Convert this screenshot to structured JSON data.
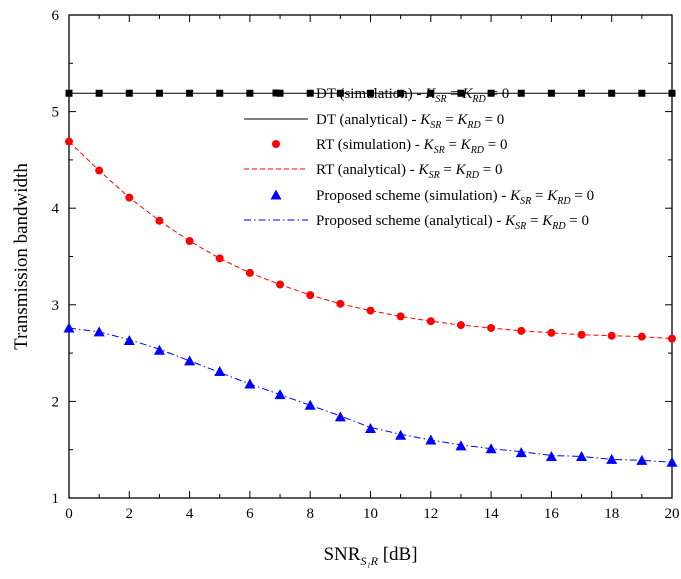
{
  "chart_data": {
    "type": "line",
    "xlabel": "SNR",
    "xlabel_sub": "S₁R",
    "xlabel_unit": "[dB]",
    "ylabel": "Transmission bandwidth",
    "xlim": [
      0,
      20
    ],
    "ylim": [
      1,
      6
    ],
    "xticks": [
      0,
      2,
      4,
      6,
      8,
      10,
      12,
      14,
      16,
      18,
      20
    ],
    "yticks": [
      1,
      2,
      3,
      4,
      5,
      6
    ],
    "grid": false,
    "legend_position": "center-right",
    "x": [
      0,
      1,
      2,
      3,
      4,
      5,
      6,
      7,
      8,
      9,
      10,
      11,
      12,
      13,
      14,
      15,
      16,
      17,
      18,
      19,
      20
    ],
    "series": [
      {
        "legend_text": "DT (simulation) - ",
        "marker": "square",
        "line": "none",
        "color": "#000000",
        "values": [
          5.19,
          5.19,
          5.19,
          5.19,
          5.19,
          5.19,
          5.19,
          5.19,
          5.19,
          5.19,
          5.19,
          5.19,
          5.19,
          5.19,
          5.19,
          5.19,
          5.19,
          5.19,
          5.19,
          5.19,
          5.19
        ]
      },
      {
        "legend_text": "DT (analytical) - ",
        "marker": "none",
        "line": "solid",
        "color": "#000000",
        "values": [
          5.19,
          5.19,
          5.19,
          5.19,
          5.19,
          5.19,
          5.19,
          5.19,
          5.19,
          5.19,
          5.19,
          5.19,
          5.19,
          5.19,
          5.19,
          5.19,
          5.19,
          5.19,
          5.19,
          5.19,
          5.19
        ]
      },
      {
        "legend_text": "RT (simulation) - ",
        "marker": "circle",
        "line": "none",
        "color": "#ff0000",
        "values": [
          4.69,
          4.39,
          4.11,
          3.87,
          3.66,
          3.48,
          3.33,
          3.21,
          3.1,
          3.01,
          2.94,
          2.88,
          2.83,
          2.79,
          2.76,
          2.73,
          2.71,
          2.69,
          2.68,
          2.67,
          2.65
        ]
      },
      {
        "legend_text": "RT (analytical) - ",
        "marker": "none",
        "line": "dashed",
        "color": "#ff0000",
        "values": [
          4.69,
          4.39,
          4.11,
          3.87,
          3.66,
          3.48,
          3.33,
          3.21,
          3.1,
          3.01,
          2.94,
          2.88,
          2.83,
          2.79,
          2.76,
          2.73,
          2.71,
          2.69,
          2.68,
          2.67,
          2.65
        ]
      },
      {
        "legend_text": "Proposed scheme (simulation) - ",
        "marker": "triangle",
        "line": "none",
        "color": "#0000ff",
        "values": [
          2.76,
          2.72,
          2.63,
          2.53,
          2.42,
          2.31,
          2.18,
          2.07,
          1.96,
          1.84,
          1.72,
          1.65,
          1.6,
          1.54,
          1.51,
          1.47,
          1.43,
          1.43,
          1.4,
          1.39,
          1.37
        ]
      },
      {
        "legend_text": "Proposed scheme (analytical) - ",
        "marker": "none",
        "line": "dashdot",
        "color": "#0000ff",
        "values": [
          2.76,
          2.72,
          2.64,
          2.54,
          2.42,
          2.3,
          2.18,
          2.07,
          1.96,
          1.85,
          1.73,
          1.66,
          1.6,
          1.55,
          1.51,
          1.48,
          1.44,
          1.43,
          1.4,
          1.39,
          1.37
        ]
      }
    ],
    "legend_formula": {
      "k1": "K",
      "k1_sub": "SR",
      "eq": " = ",
      "k2": "K",
      "k2_sub": "RD",
      "eq2": " = ",
      "val": "0"
    }
  }
}
